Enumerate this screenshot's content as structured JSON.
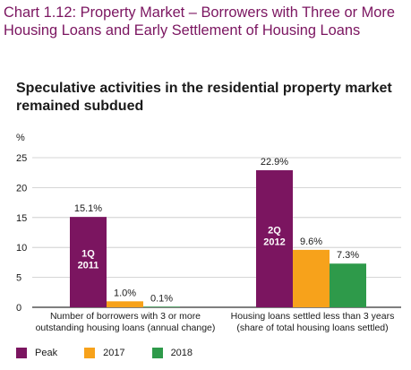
{
  "title": "Chart 1.12: Property Market – Borrowers with Three or More Housing Loans and Early Settlement of Housing Loans",
  "subtitle": "Speculative activities in the residential property market remained subdued",
  "colors": {
    "title": "#7b1560",
    "peak": "#7b1560",
    "y2017": "#f7a21b",
    "y2018": "#2e9a4a"
  },
  "chart_data": {
    "type": "bar",
    "ylabel": "%",
    "ylim": [
      0,
      25
    ],
    "yticks": [
      0,
      5,
      10,
      15,
      20,
      25
    ],
    "grid": true,
    "legend_position": "bottom-left",
    "categories": [
      [
        "Number of borrowers with 3 or more",
        "outstanding housing loans (annual change)"
      ],
      [
        "Housing loans settled less than 3 years",
        "(share of total housing loans settled)"
      ]
    ],
    "series": [
      {
        "name": "Peak",
        "values": [
          15.1,
          22.9
        ],
        "labels": [
          "15.1%",
          "22.9%"
        ],
        "inner_labels": [
          [
            "1Q",
            "2011"
          ],
          [
            "2Q",
            "2012"
          ]
        ]
      },
      {
        "name": "2017",
        "values": [
          1.0,
          9.6
        ],
        "labels": [
          "1.0%",
          "9.6%"
        ]
      },
      {
        "name": "2018",
        "values": [
          0.1,
          7.3
        ],
        "labels": [
          "0.1%",
          "7.3%"
        ]
      }
    ]
  }
}
